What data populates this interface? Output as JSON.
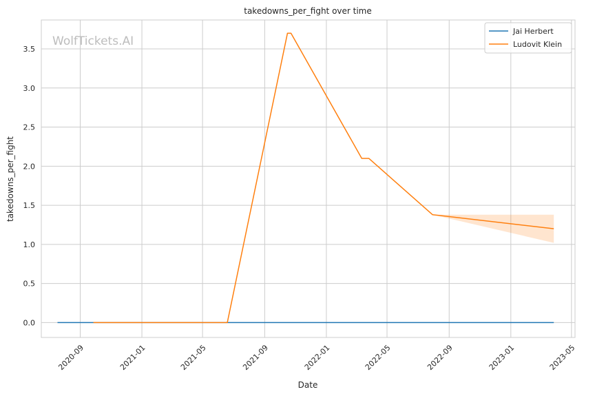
{
  "chart_data": {
    "type": "line",
    "title": "takedowns_per_fight over time",
    "xlabel": "Date",
    "ylabel": "takedowns_per_fight",
    "watermark": "WolfTickets.AI",
    "xlim": [
      "2020-06-16",
      "2023-05-08"
    ],
    "ylim": [
      -0.19,
      3.87
    ],
    "x_ticks": [
      "2020-09",
      "2021-01",
      "2021-05",
      "2021-09",
      "2022-01",
      "2022-05",
      "2022-09",
      "2023-01",
      "2023-05"
    ],
    "y_ticks": [
      0.0,
      0.5,
      1.0,
      1.5,
      2.0,
      2.5,
      3.0,
      3.5
    ],
    "y_tick_labels": [
      "0.0",
      "0.5",
      "1.0",
      "1.5",
      "2.0",
      "2.5",
      "3.0",
      "3.5"
    ],
    "grid": true,
    "legend_position": "top-right",
    "series": [
      {
        "name": "Jai Herbert",
        "color": "#1f77b4",
        "points": [
          {
            "x": "2020-07-18",
            "y": 0.0
          },
          {
            "x": "2023-03-27",
            "y": 0.0
          }
        ]
      },
      {
        "name": "Ludovit Klein",
        "color": "#ff7f0e",
        "points": [
          {
            "x": "2020-09-27",
            "y": 0.0
          },
          {
            "x": "2021-06-19",
            "y": 0.0
          },
          {
            "x": "2021-10-16",
            "y": 3.7
          },
          {
            "x": "2021-10-23",
            "y": 3.7
          },
          {
            "x": "2022-03-12",
            "y": 2.1
          },
          {
            "x": "2022-03-26",
            "y": 2.1
          },
          {
            "x": "2022-07-30",
            "y": 1.38
          },
          {
            "x": "2023-03-27",
            "y": 1.2
          }
        ],
        "band": [
          {
            "x": "2022-07-30",
            "lower": 1.38,
            "upper": 1.38
          },
          {
            "x": "2023-03-27",
            "lower": 1.02,
            "upper": 1.38
          }
        ]
      }
    ]
  }
}
